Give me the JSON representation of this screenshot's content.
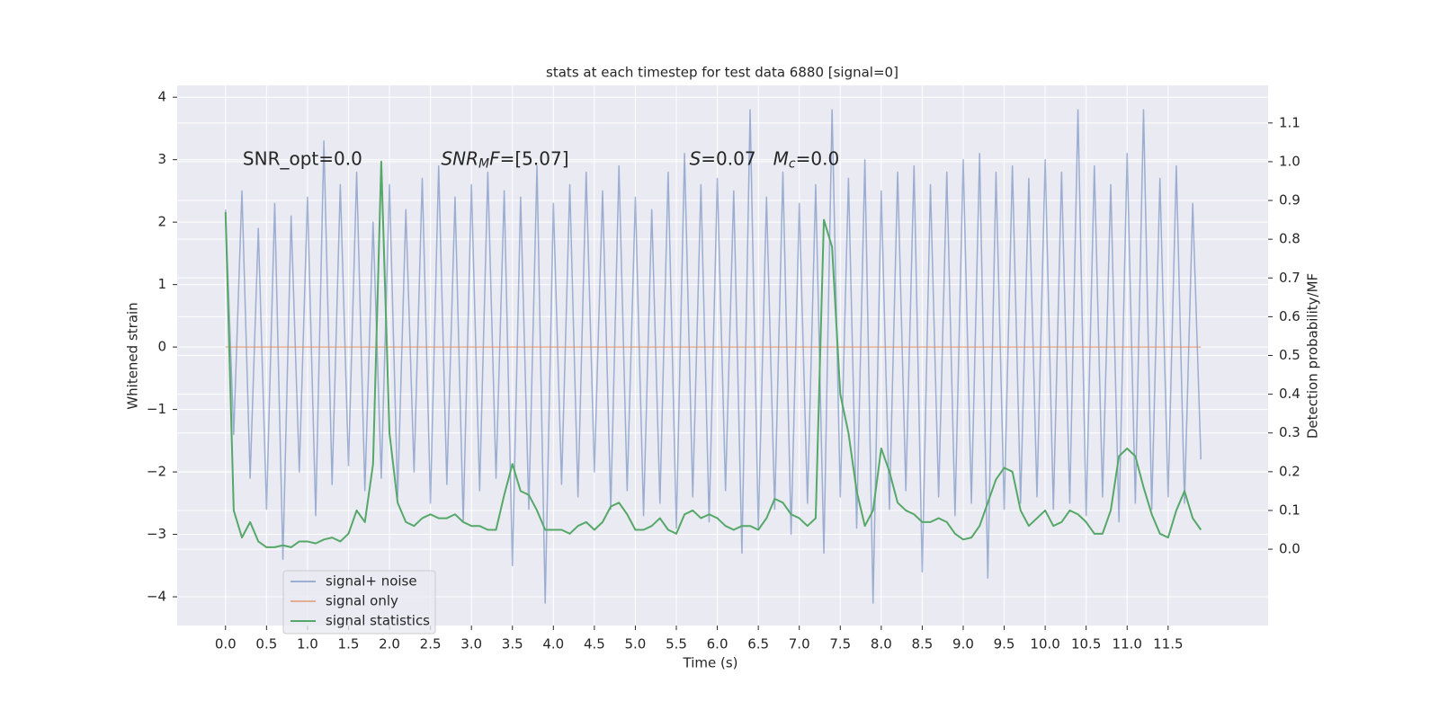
{
  "chart_data": {
    "type": "line",
    "title": "stats at each timestep for test data 6880 [signal=0]",
    "xlabel": "Time (s)",
    "ylabel": "Whitened strain",
    "y2label": "Detection probability/MF",
    "annotations": [
      [
        {
          "text": "SNR_opt=0.0",
          "style": "normal"
        }
      ],
      [
        {
          "text": "SNR",
          "style": "italic"
        },
        {
          "text": "M",
          "style": "italic-sub"
        },
        {
          "text": "F",
          "style": "italic"
        },
        {
          "text": "=[5.07]",
          "style": "normal"
        }
      ],
      [
        {
          "text": "S",
          "style": "italic"
        },
        {
          "text": "=0.07   ",
          "style": "normal"
        },
        {
          "text": "M",
          "style": "italic"
        },
        {
          "text": "c",
          "style": "italic-sub"
        },
        {
          "text": "=0.0",
          "style": "normal"
        }
      ]
    ],
    "x": [
      0.0,
      0.1,
      0.2,
      0.3,
      0.4,
      0.5,
      0.6,
      0.7,
      0.8,
      0.9,
      1.0,
      1.1,
      1.2,
      1.3,
      1.4,
      1.5,
      1.6,
      1.7,
      1.8,
      1.9,
      2.0,
      2.1,
      2.2,
      2.3,
      2.4,
      2.5,
      2.6,
      2.7,
      2.8,
      2.9,
      3.0,
      3.1,
      3.2,
      3.3,
      3.4,
      3.5,
      3.6,
      3.7,
      3.8,
      3.9,
      4.0,
      4.1,
      4.2,
      4.3,
      4.4,
      4.5,
      4.6,
      4.7,
      4.8,
      4.9,
      5.0,
      5.1,
      5.2,
      5.3,
      5.4,
      5.5,
      5.6,
      5.7,
      5.8,
      5.9,
      6.0,
      6.1,
      6.2,
      6.3,
      6.4,
      6.5,
      6.6,
      6.7,
      6.8,
      6.9,
      7.0,
      7.1,
      7.2,
      7.3,
      7.4,
      7.5,
      7.6,
      7.7,
      7.8,
      7.9,
      8.0,
      8.1,
      8.2,
      8.3,
      8.4,
      8.5,
      8.6,
      8.7,
      8.8,
      8.9,
      9.0,
      9.1,
      9.2,
      9.3,
      9.4,
      9.5,
      9.6,
      9.7,
      9.8,
      9.9,
      10.0,
      10.1,
      10.2,
      10.3,
      10.4,
      10.5,
      10.6,
      10.7,
      10.8,
      10.9,
      11.0,
      11.1,
      11.2,
      11.3,
      11.4,
      11.5,
      11.6,
      11.7,
      11.8,
      11.9
    ],
    "series": [
      {
        "name": "signal+ noise",
        "color": "#4c72b0",
        "opacity": 0.5,
        "values": [
          2.2,
          -1.4,
          2.5,
          -2.1,
          1.9,
          -2.6,
          2.3,
          -3.4,
          2.1,
          -2.0,
          2.4,
          -2.7,
          3.3,
          -2.2,
          2.6,
          -1.9,
          2.8,
          -2.3,
          2.0,
          -2.1,
          2.6,
          -2.4,
          2.2,
          -2.0,
          2.7,
          -2.5,
          2.9,
          -2.2,
          2.4,
          -2.8,
          2.6,
          -2.3,
          2.8,
          -2.1,
          2.5,
          -3.5,
          2.4,
          -2.6,
          2.9,
          -4.1,
          2.3,
          -2.2,
          2.6,
          -2.4,
          2.8,
          -2.0,
          2.5,
          -2.6,
          2.9,
          -2.3,
          2.4,
          -2.7,
          2.2,
          -2.5,
          2.8,
          -2.9,
          3.1,
          -2.4,
          2.6,
          -2.8,
          2.7,
          -2.3,
          2.5,
          -3.3,
          3.8,
          -2.9,
          2.4,
          -2.6,
          2.8,
          -3.0,
          2.3,
          -2.5,
          2.6,
          -3.3,
          3.8,
          -2.4,
          2.7,
          -2.9,
          3.0,
          -4.1,
          2.5,
          -2.6,
          2.8,
          -2.3,
          2.9,
          -3.6,
          2.6,
          -2.4,
          2.8,
          -2.7,
          3.0,
          -2.5,
          3.1,
          -3.7,
          2.8,
          -2.6,
          2.9,
          -2.5,
          2.7,
          -2.4,
          3.0,
          -2.6,
          2.8,
          -2.5,
          3.8,
          -2.7,
          2.9,
          -2.4,
          2.6,
          -2.8,
          3.1,
          -2.5,
          3.8,
          -2.6,
          2.7,
          -2.4,
          2.9,
          -2.5,
          2.3,
          -1.8
        ]
      },
      {
        "name": "signal only",
        "color": "#dd8452",
        "opacity": 0.6,
        "values": [
          0,
          0,
          0,
          0,
          0,
          0,
          0,
          0,
          0,
          0,
          0,
          0,
          0,
          0,
          0,
          0,
          0,
          0,
          0,
          0,
          0,
          0,
          0,
          0,
          0,
          0,
          0,
          0,
          0,
          0,
          0,
          0,
          0,
          0,
          0,
          0,
          0,
          0,
          0,
          0,
          0,
          0,
          0,
          0,
          0,
          0,
          0,
          0,
          0,
          0,
          0,
          0,
          0,
          0,
          0,
          0,
          0,
          0,
          0,
          0,
          0,
          0,
          0,
          0,
          0,
          0,
          0,
          0,
          0,
          0,
          0,
          0,
          0,
          0,
          0,
          0,
          0,
          0,
          0,
          0,
          0,
          0,
          0,
          0,
          0,
          0,
          0,
          0,
          0,
          0,
          0,
          0,
          0,
          0,
          0,
          0,
          0,
          0,
          0,
          0,
          0,
          0,
          0,
          0,
          0,
          0,
          0,
          0,
          0,
          0,
          0,
          0,
          0,
          0,
          0,
          0,
          0,
          0,
          0,
          0
        ]
      },
      {
        "name": "signal statistics",
        "color": "#55a868",
        "opacity": 1,
        "axis": "y2",
        "values": [
          0.87,
          0.1,
          0.03,
          0.07,
          0.02,
          0.005,
          0.005,
          0.01,
          0.005,
          0.02,
          0.02,
          0.015,
          0.025,
          0.03,
          0.02,
          0.04,
          0.1,
          0.07,
          0.22,
          1.0,
          0.3,
          0.12,
          0.07,
          0.06,
          0.08,
          0.09,
          0.08,
          0.08,
          0.09,
          0.07,
          0.06,
          0.06,
          0.05,
          0.05,
          0.14,
          0.22,
          0.15,
          0.14,
          0.1,
          0.05,
          0.05,
          0.05,
          0.04,
          0.06,
          0.07,
          0.05,
          0.07,
          0.11,
          0.12,
          0.09,
          0.05,
          0.05,
          0.06,
          0.08,
          0.05,
          0.04,
          0.09,
          0.1,
          0.08,
          0.09,
          0.08,
          0.06,
          0.05,
          0.06,
          0.06,
          0.05,
          0.08,
          0.13,
          0.12,
          0.09,
          0.08,
          0.06,
          0.08,
          0.85,
          0.78,
          0.4,
          0.3,
          0.15,
          0.06,
          0.1,
          0.26,
          0.2,
          0.12,
          0.1,
          0.09,
          0.07,
          0.07,
          0.08,
          0.07,
          0.04,
          0.025,
          0.03,
          0.06,
          0.12,
          0.18,
          0.21,
          0.2,
          0.1,
          0.06,
          0.08,
          0.1,
          0.06,
          0.07,
          0.1,
          0.09,
          0.07,
          0.04,
          0.04,
          0.1,
          0.24,
          0.26,
          0.24,
          0.16,
          0.09,
          0.04,
          0.03,
          0.1,
          0.15,
          0.08,
          0.05
        ]
      }
    ],
    "xlim": [
      -0.59,
      12.72
    ],
    "xticks": [
      {
        "value": 0,
        "label": "0.0"
      },
      0.5,
      {
        "value": 1,
        "label": "1.0"
      },
      1.5,
      {
        "value": 2,
        "label": "2.0"
      },
      2.5,
      {
        "value": 3,
        "label": "3.0"
      },
      3.5,
      {
        "value": 4,
        "label": "4.0"
      },
      4.5,
      {
        "value": 5,
        "label": "5.0"
      },
      5.5,
      {
        "value": 6,
        "label": "6.0"
      },
      6.5,
      {
        "value": 7,
        "label": "7.0"
      },
      7.5,
      {
        "value": 8,
        "label": "8.0"
      },
      8.5,
      {
        "value": 9,
        "label": "9.0"
      },
      9.5,
      {
        "value": 10,
        "label": "10.0"
      },
      10.5,
      {
        "value": 11,
        "label": "11.0"
      },
      11.5
    ],
    "ylim": [
      -4.46,
      4.19
    ],
    "yticks": [
      {
        "value": -4,
        "label": "−4"
      },
      {
        "value": -3,
        "label": "−3"
      },
      {
        "value": -2,
        "label": "−2"
      },
      {
        "value": -1,
        "label": "−1"
      },
      0,
      1,
      2,
      3,
      4
    ],
    "y2lim": [
      -0.197,
      1.197
    ],
    "y2ticks": [
      {
        "value": 0,
        "label": "0.0"
      },
      0.1,
      0.2,
      0.3,
      0.4,
      0.5,
      0.6,
      0.7,
      0.8,
      0.9,
      {
        "value": 1,
        "label": "1.0"
      },
      1.1
    ],
    "grid": true,
    "legend": "lower left",
    "background": "#eaeaf2"
  }
}
